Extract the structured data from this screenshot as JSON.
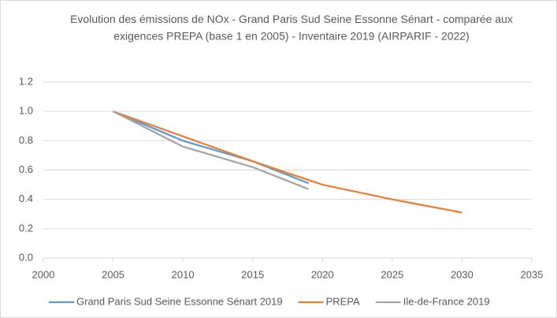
{
  "chart_data": {
    "type": "line",
    "title": "Evolution des émissions de NOx - Grand Paris Sud Seine Essonne Sénart - comparée aux exigences PREPA (base 1 en 2005) - Inventaire 2019 (AIRPARIF - 2022)",
    "series": [
      {
        "name": "Grand Paris Sud Seine Essonne Sénart 2019",
        "color": "#5b9bd5",
        "x": [
          2005,
          2010,
          2015,
          2019
        ],
        "values": [
          1.0,
          0.8,
          0.66,
          0.51
        ]
      },
      {
        "name": "PREPA",
        "color": "#ed7d31",
        "x": [
          2005,
          2010,
          2015,
          2020,
          2025,
          2030
        ],
        "values": [
          1.0,
          0.83,
          0.66,
          0.5,
          0.4,
          0.31
        ]
      },
      {
        "name": "Ile-de-France 2019",
        "color": "#a5a5a5",
        "x": [
          2005,
          2010,
          2015,
          2019
        ],
        "values": [
          1.0,
          0.76,
          0.62,
          0.47
        ]
      }
    ],
    "xlim": [
      2000,
      2035
    ],
    "xticks": [
      2000,
      2005,
      2010,
      2015,
      2020,
      2025,
      2030,
      2035
    ],
    "ylim": [
      0,
      1.2
    ],
    "yticks": [
      {
        "value": 0,
        "label": "0.0"
      },
      {
        "value": 0.2,
        "label": "0.2"
      },
      {
        "value": 0.4,
        "label": "0.4"
      },
      {
        "value": 0.6,
        "label": "0.6"
      },
      {
        "value": 0.8,
        "label": "0.8"
      },
      {
        "value": 1.0,
        "label": "1.0"
      },
      {
        "value": 1.2,
        "label": "1.2"
      }
    ],
    "grid": true,
    "legend": "bottom"
  }
}
